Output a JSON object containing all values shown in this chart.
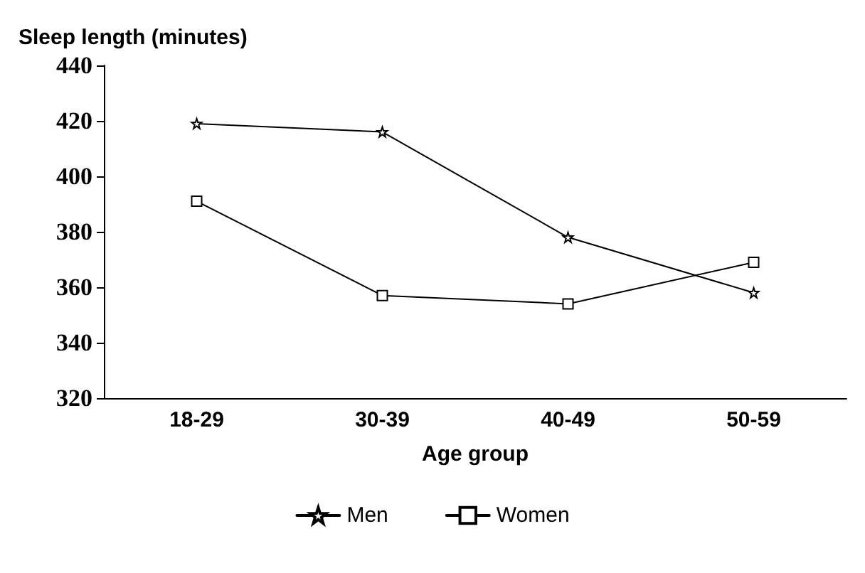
{
  "chart_data": {
    "type": "line",
    "ylabel": "Sleep length (minutes)",
    "xlabel": "Age group",
    "categories": [
      "18-29",
      "30-39",
      "40-49",
      "50-59"
    ],
    "ylim": [
      320,
      440
    ],
    "yticks": [
      320,
      340,
      360,
      380,
      400,
      420,
      440
    ],
    "grid": false,
    "legend": "bottom",
    "line_style": "solid",
    "series": [
      {
        "name": "Men",
        "color": "#000000",
        "marker": "star",
        "values": [
          419,
          416,
          378,
          358
        ]
      },
      {
        "name": "Women",
        "color": "#000000",
        "marker": "square",
        "values": [
          391,
          357,
          354,
          369
        ]
      }
    ]
  }
}
